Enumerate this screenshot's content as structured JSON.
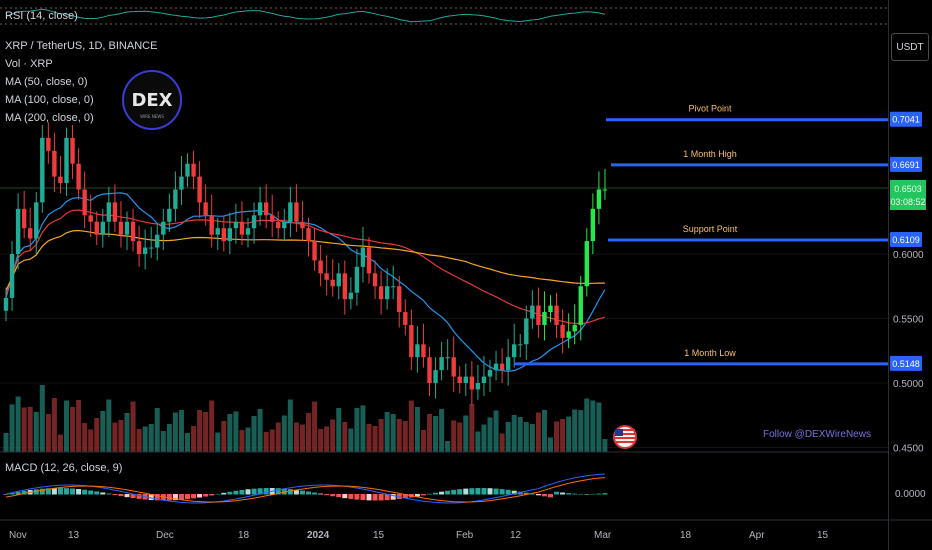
{
  "rsi": {
    "label": "RSI (14, close)"
  },
  "header": {
    "symbol_line": "XRP / TetherUS, 1D, BINANCE",
    "vol_line": "Vol · XRP",
    "ma_lines": [
      "MA (50, close, 0)",
      "MA (100, close, 0)",
      "MA (200, close, 0)"
    ]
  },
  "currency_button": "USDT",
  "logo": {
    "text": "DEX",
    "subtext": "WIRE NEWS"
  },
  "levels": [
    {
      "name": "Pivot Point",
      "value": "0.7041",
      "price": 0.7041
    },
    {
      "name": "1 Month High",
      "value": "0.6691",
      "price": 0.6691
    },
    {
      "name": "Support Point",
      "value": "0.6109",
      "price": 0.6109
    },
    {
      "name": "1 Month Low",
      "value": "0.5148",
      "price": 0.5148
    }
  ],
  "current_price": {
    "value": "0.6503",
    "countdown": "03:08:52",
    "price": 0.6503
  },
  "price_axis": [
    "0.6000",
    "0.5500",
    "0.5000",
    "0.4500"
  ],
  "macd": {
    "label": "MACD (12, 26, close, 9)",
    "axis": "0.0000"
  },
  "watermark": "Follow @DEXWireNews",
  "time_axis": [
    "Nov",
    "13",
    "Dec",
    "18",
    "2024",
    "15",
    "Feb",
    "12",
    "Mar",
    "18",
    "Apr",
    "15"
  ],
  "colors": {
    "up": "#22ab94",
    "up_bright": "#26e84a",
    "down": "#ef3b3b",
    "level_line": "#2962ff",
    "ma50": "#2196f3",
    "ma100": "#e53935",
    "ma200": "#f5a623",
    "label_text": "#f5c06a"
  },
  "chart_data": {
    "type": "candlestick",
    "symbol": "XRP / TetherUS",
    "interval": "1D",
    "exchange": "BINANCE",
    "y_range": [
      0.45,
      0.72
    ],
    "x_ticks": [
      "Nov",
      "13",
      "Dec",
      "18",
      "2024",
      "15",
      "Feb",
      "12",
      "Mar",
      "18",
      "Apr",
      "15"
    ],
    "close_series": [
      0.566,
      0.6,
      0.635,
      0.62,
      0.612,
      0.64,
      0.69,
      0.68,
      0.66,
      0.655,
      0.69,
      0.67,
      0.65,
      0.63,
      0.625,
      0.615,
      0.625,
      0.64,
      0.625,
      0.615,
      0.625,
      0.61,
      0.6,
      0.605,
      0.605,
      0.615,
      0.625,
      0.635,
      0.65,
      0.66,
      0.67,
      0.66,
      0.64,
      0.63,
      0.615,
      0.62,
      0.61,
      0.62,
      0.625,
      0.615,
      0.62,
      0.63,
      0.64,
      0.63,
      0.625,
      0.62,
      0.625,
      0.64,
      0.625,
      0.62,
      0.61,
      0.595,
      0.585,
      0.58,
      0.575,
      0.585,
      0.565,
      0.57,
      0.59,
      0.605,
      0.585,
      0.575,
      0.565,
      0.575,
      0.575,
      0.555,
      0.545,
      0.52,
      0.53,
      0.52,
      0.5,
      0.51,
      0.52,
      0.52,
      0.505,
      0.5,
      0.505,
      0.495,
      0.5,
      0.505,
      0.51,
      0.515,
      0.51,
      0.52,
      0.53,
      0.53,
      0.55,
      0.56,
      0.545,
      0.555,
      0.56,
      0.545,
      0.535,
      0.54,
      0.545,
      0.575,
      0.61,
      0.635,
      0.65,
      0.65
    ]
  }
}
